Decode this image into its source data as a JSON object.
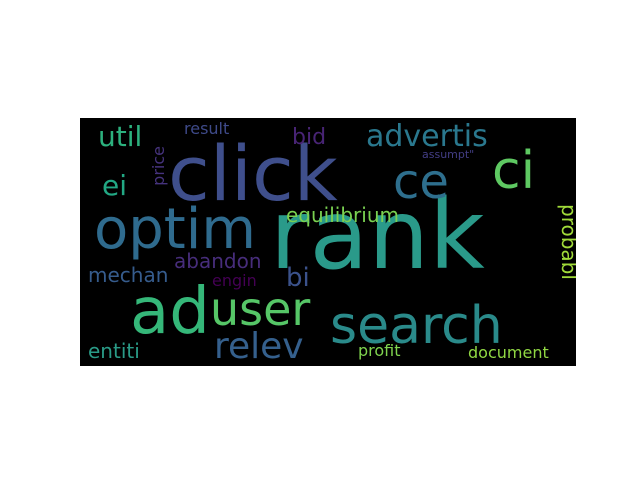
{
  "background_color": "#000000",
  "words": [
    {
      "text": "rank",
      "color": "#2a9a8a"
    },
    {
      "text": "click",
      "color": "#3f4f8c"
    },
    {
      "text": "optim",
      "color": "#2f6b8e"
    },
    {
      "text": "ad",
      "color": "#35b779"
    },
    {
      "text": "search",
      "color": "#2a8a8a"
    },
    {
      "text": "ci",
      "color": "#5ec962"
    },
    {
      "text": "ce",
      "color": "#2e6f8e"
    },
    {
      "text": "user",
      "color": "#56c667"
    },
    {
      "text": "advertis",
      "color": "#2a788e"
    },
    {
      "text": "relev",
      "color": "#35608d"
    },
    {
      "text": "equilibrium",
      "color": "#7ad151"
    },
    {
      "text": "util",
      "color": "#2cb17e"
    },
    {
      "text": "ei",
      "color": "#22a884"
    },
    {
      "text": "bi",
      "color": "#3b528b"
    },
    {
      "text": "bid",
      "color": "#482475"
    },
    {
      "text": "abandon",
      "color": "#472d7b"
    },
    {
      "text": "mechan",
      "color": "#365c8d"
    },
    {
      "text": "entiti",
      "color": "#2a9b87"
    },
    {
      "text": "probabl",
      "color": "#a0da39"
    },
    {
      "text": "document",
      "color": "#90d743"
    },
    {
      "text": "profit",
      "color": "#7fd34e"
    },
    {
      "text": "engin",
      "color": "#440154"
    },
    {
      "text": "result",
      "color": "#3e4a89"
    },
    {
      "text": "price",
      "color": "#46337e"
    },
    {
      "text": "assumpt\"",
      "color": "#433e85"
    }
  ]
}
